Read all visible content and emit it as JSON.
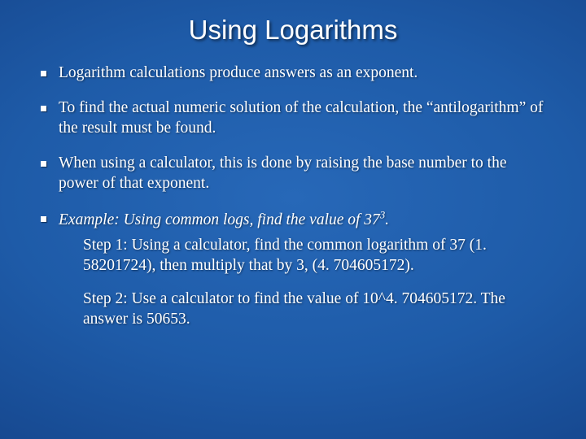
{
  "slide": {
    "title": "Using Logarithms",
    "title_fontsize": 33,
    "body_fontsize": 19.5,
    "background_gradient": {
      "type": "radial",
      "stops": [
        "#2768b8",
        "#1e5ba8",
        "#174a92",
        "#0e3778",
        "#0a2d68"
      ]
    },
    "text_color": "#ffffff",
    "bullet_shape": "square",
    "bullet_color": "#ffffff",
    "bullets": [
      {
        "text": "Logarithm calculations produce answers as an exponent."
      },
      {
        "text": "To find the actual numeric solution of the calculation, the “antilogarithm” of the result must be found."
      },
      {
        "text": "When using a calculator, this is done by raising the base number to the power of that exponent."
      }
    ],
    "example": {
      "lead_prefix": "Example: Using common logs, find the value of 37",
      "lead_exponent": "3",
      "lead_suffix": ".",
      "steps": [
        "Step 1: Using a calculator, find the common logarithm of 37 (1. 58201724), then multiply that by 3, (4. 704605172).",
        "Step 2: Use a calculator to find the value of 10^4. 704605172. The answer is 50653."
      ]
    }
  }
}
